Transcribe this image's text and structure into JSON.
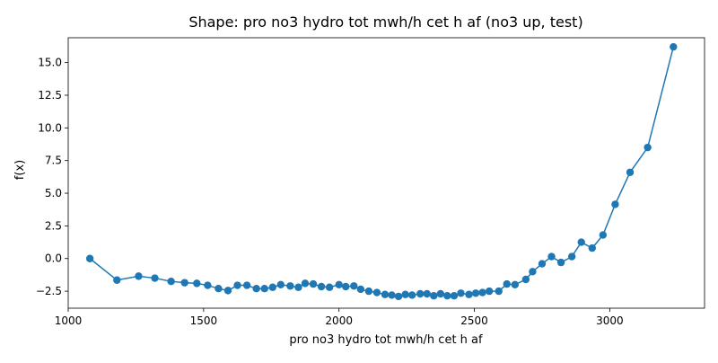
{
  "colors": {
    "series": "#1f77b4",
    "axis": "#000000",
    "background": "#ffffff"
  },
  "chart_data": {
    "type": "line",
    "title": "Shape: pro no3 hydro tot mwh/h cet h af (no3 up, test)",
    "xlabel": "pro no3 hydro tot mwh/h cet h af",
    "ylabel": "f(x)",
    "xlim": [
      1000,
      3350
    ],
    "ylim": [
      -3.8,
      16.9
    ],
    "grid": false,
    "marker": "circle",
    "x_ticks": [
      1000,
      1500,
      2000,
      2500,
      3000
    ],
    "x_tick_labels": [
      "1000",
      "1500",
      "2000",
      "2500",
      "3000"
    ],
    "y_ticks": [
      -2.5,
      0.0,
      2.5,
      5.0,
      7.5,
      10.0,
      12.5,
      15.0
    ],
    "y_tick_labels": [
      "−2.5",
      "0.0",
      "2.5",
      "5.0",
      "7.5",
      "10.0",
      "12.5",
      "15.0"
    ],
    "series": [
      {
        "x": [
          1080,
          1180,
          1260,
          1320,
          1380,
          1430,
          1475,
          1515,
          1555,
          1590,
          1625,
          1660,
          1695,
          1725,
          1755,
          1785,
          1820,
          1850,
          1875,
          1905,
          1935,
          1965,
          2000,
          2025,
          2055,
          2080,
          2110,
          2140,
          2170,
          2195,
          2220,
          2245,
          2270,
          2300,
          2325,
          2350,
          2375,
          2400,
          2425,
          2450,
          2480,
          2505,
          2530,
          2555,
          2590,
          2620,
          2650,
          2690,
          2715,
          2750,
          2785,
          2820,
          2860,
          2895,
          2935,
          2975,
          3020,
          3075,
          3140,
          3235
        ],
        "y": [
          0.0,
          -1.65,
          -1.35,
          -1.5,
          -1.75,
          -1.85,
          -1.9,
          -2.05,
          -2.3,
          -2.45,
          -2.05,
          -2.05,
          -2.3,
          -2.3,
          -2.2,
          -2.0,
          -2.1,
          -2.2,
          -1.9,
          -1.95,
          -2.15,
          -2.2,
          -2.0,
          -2.15,
          -2.1,
          -2.35,
          -2.5,
          -2.6,
          -2.75,
          -2.8,
          -2.9,
          -2.75,
          -2.8,
          -2.7,
          -2.7,
          -2.85,
          -2.7,
          -2.85,
          -2.85,
          -2.65,
          -2.75,
          -2.65,
          -2.6,
          -2.5,
          -2.5,
          -1.95,
          -2.0,
          -1.6,
          -1.0,
          -0.4,
          0.15,
          -0.3,
          0.15,
          1.25,
          0.8,
          1.8,
          4.15,
          6.6,
          8.5,
          16.2
        ]
      }
    ]
  }
}
